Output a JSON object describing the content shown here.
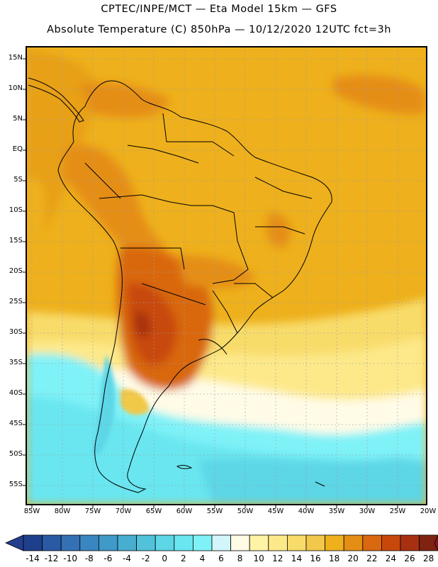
{
  "title_line1": "CPTEC/INPE/MCT —  Eta Model 15km — GFS",
  "title_line2": "Absolute Temperature (C) 850hPa — 10/12/2020 12UTC fct=3h",
  "lat_labels": [
    "15N",
    "10N",
    "5N",
    "EQ",
    "5S",
    "10S",
    "15S",
    "20S",
    "25S",
    "30S",
    "35S",
    "40S",
    "45S",
    "50S",
    "55S"
  ],
  "lon_labels": [
    "85W",
    "80W",
    "75W",
    "70W",
    "65W",
    "60W",
    "55W",
    "50W",
    "45W",
    "40W",
    "35W",
    "30W",
    "25W",
    "20W"
  ],
  "colorbar": {
    "labels": [
      "-14",
      "-12",
      "-10",
      "-8",
      "-6",
      "-4",
      "-2",
      "0",
      "2",
      "4",
      "6",
      "8",
      "10",
      "12",
      "14",
      "16",
      "18",
      "20",
      "22",
      "24",
      "26",
      "28"
    ],
    "colors": [
      "#1e3f8c",
      "#2a5aa3",
      "#3471b4",
      "#3a86c0",
      "#3f9ac8",
      "#47aed0",
      "#52c2da",
      "#5dd6e6",
      "#69e6ef",
      "#7ff2f8",
      "#d2f6fb",
      "#fffbe6",
      "#fff4a6",
      "#fde98a",
      "#f8dc6a",
      "#f2c84a",
      "#eeb01c",
      "#e58e16",
      "#d96810",
      "#c8480c",
      "#a83010",
      "#7e2212"
    ],
    "under_color": "#243d8f",
    "over_color": "#8a1620"
  }
}
